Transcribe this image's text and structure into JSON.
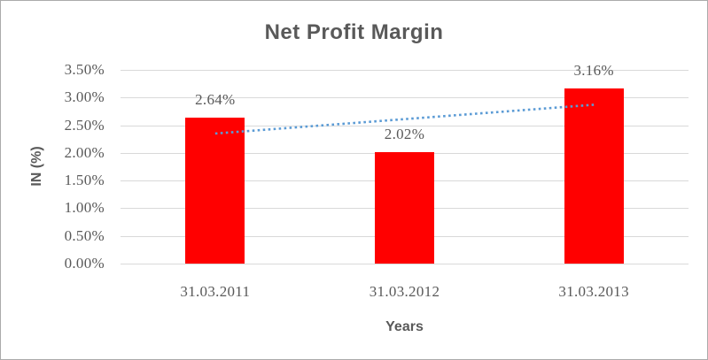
{
  "chart": {
    "title": "Net Profit Margin",
    "y_axis_title": "IN (%)",
    "x_axis_title": "Years",
    "colors": {
      "bar": "#FF0000",
      "gridline": "#D9D9D9",
      "text": "#595959",
      "trendline": "#5B9BD5",
      "frame_border": "#ABABAB",
      "background": "#FFFFFF"
    }
  },
  "chart_data": {
    "type": "bar",
    "title": "Net Profit Margin",
    "xlabel": "Years",
    "ylabel": "IN (%)",
    "categories": [
      "31.03.2011",
      "31.03.2012",
      "31.03.2013"
    ],
    "values": [
      2.64,
      2.02,
      3.16
    ],
    "data_labels": [
      "2.64%",
      "2.02%",
      "3.16%"
    ],
    "unit": "%",
    "ylim": [
      0,
      3.5
    ],
    "ytick_step": 0.5,
    "ytick_labels": [
      "0.00%",
      "0.50%",
      "1.00%",
      "1.50%",
      "2.00%",
      "2.50%",
      "3.00%",
      "3.50%"
    ],
    "grid": true,
    "legend": "none",
    "trendline": {
      "type": "linear",
      "style": "dotted",
      "color": "#5B9BD5",
      "start_value": 2.35,
      "end_value": 2.87
    }
  }
}
